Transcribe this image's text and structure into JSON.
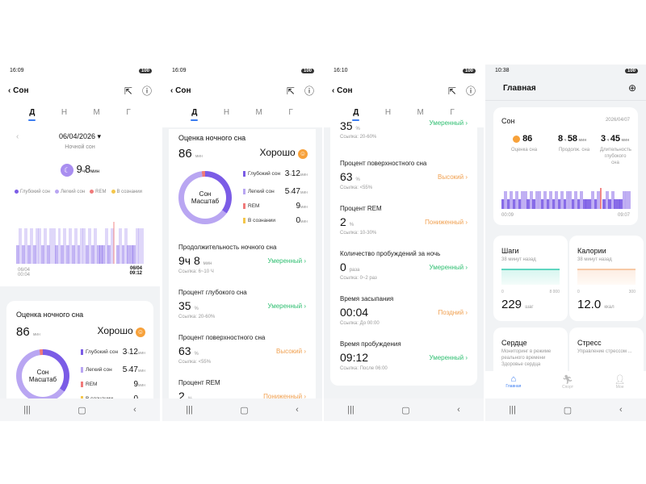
{
  "colors": {
    "deep": "#7b5ce6",
    "light": "#b9a6f2",
    "rem": "#f07a7a",
    "awake": "#f4c64a",
    "accent": "#3b7cf0"
  },
  "status": [
    {
      "time": "16:09",
      "bat": "100"
    },
    {
      "time": "16:09",
      "bat": "100"
    },
    {
      "time": "16:10",
      "bat": "100"
    },
    {
      "time": "10:38",
      "bat": "100"
    }
  ],
  "header": {
    "title": "Сон"
  },
  "tabs": [
    "Д",
    "Н",
    "М",
    "Г"
  ],
  "day": {
    "date": "06/04/2026",
    "subtitle": "Ночной сон",
    "total_h": "9",
    "h_unit": "ч",
    "total_m": "8",
    "m_unit": "мин",
    "legend": [
      "Глубокий сон",
      "Легкий сон",
      "REM",
      "В сознании"
    ],
    "start": "06/04 00:04",
    "end": "06/04 09:12",
    "stages": [
      1,
      2,
      1,
      2,
      1,
      2,
      1,
      2,
      2,
      1,
      2,
      1,
      2,
      2,
      1,
      2,
      1,
      2,
      1,
      2,
      1,
      2,
      1,
      2,
      2,
      1,
      2,
      1,
      2,
      1,
      1,
      1,
      2,
      1,
      2,
      3,
      1,
      2,
      1,
      2,
      1,
      1,
      1,
      2,
      2,
      2
    ]
  },
  "score": {
    "title": "Оценка ночного сна",
    "value": "86",
    "unit": "мин",
    "verdict": "Хорошо",
    "ring": "Сон Масштаб",
    "items": [
      {
        "label": "Глубокий сон",
        "h": "3",
        "m": "12"
      },
      {
        "label": "Легкий сон",
        "h": "5",
        "m": "47"
      },
      {
        "label": "REM",
        "h": "",
        "m": "9"
      },
      {
        "label": "В сознании",
        "h": "",
        "m": "0"
      }
    ]
  },
  "metrics": [
    {
      "label": "Продолжительность ночного сна",
      "value": "9ч 8",
      "unit": "мин",
      "status": "Умеренный",
      "ref": "Ссылка:  6~10 Ч"
    },
    {
      "label": "Процент глубокого сна",
      "value": "35",
      "unit": "%",
      "status": "Умеренный",
      "ref": "Ссылка:  20-60%"
    },
    {
      "label": "Процент поверхностного сна",
      "value": "63",
      "unit": "%",
      "status": "Высокий",
      "ref": "Ссылка:  <55%"
    },
    {
      "label": "Процент REM",
      "value": "2",
      "unit": "%",
      "status": "Пониженный",
      "ref": "Ссылка:  10-30%"
    },
    {
      "label": "Количество пробуждений за ночь",
      "value": "0",
      "unit": "раза",
      "status": "Умеренный",
      "ref": "Ссылка:  0~2 раз"
    },
    {
      "label": "Время засыпания",
      "value": "00:04",
      "unit": "",
      "status": "Поздний",
      "ref": "Ссылка:  До 00:00"
    },
    {
      "label": "Время пробуждения",
      "value": "09:12",
      "unit": "",
      "status": "Умеренный",
      "ref": "Ссылка:  После 06:00"
    }
  ],
  "home": {
    "title": "Главная",
    "sleep": {
      "title": "Сон",
      "date": "2026/04/07",
      "score": "86",
      "score_label": "Оценка сна",
      "dur_h": "8",
      "dur_m": "58",
      "dur_label": "Продолж. сна",
      "deep_h": "3",
      "deep_m": "45",
      "deep_label": "Длительность глубокого сна",
      "start": "00:09",
      "end": "09:07"
    },
    "steps": {
      "title": "Шаги",
      "ago": "38 минут назад",
      "min": "0",
      "max": "8 000",
      "value": "229",
      "unit": "шаг"
    },
    "cal": {
      "title": "Калории",
      "ago": "38 минут назад",
      "min": "0",
      "max": "300",
      "value": "12.0",
      "unit": "ккал"
    },
    "heart": {
      "title": "Сердце",
      "desc": "Мониторинг в режиме реального времени Здоровье сердца"
    },
    "stress": {
      "title": "Стресс",
      "desc": "Управление стрессом ..."
    },
    "nav": [
      "Главная",
      "Спорт",
      "Мое"
    ]
  },
  "units": {
    "h": "ч",
    "m": "мин"
  }
}
